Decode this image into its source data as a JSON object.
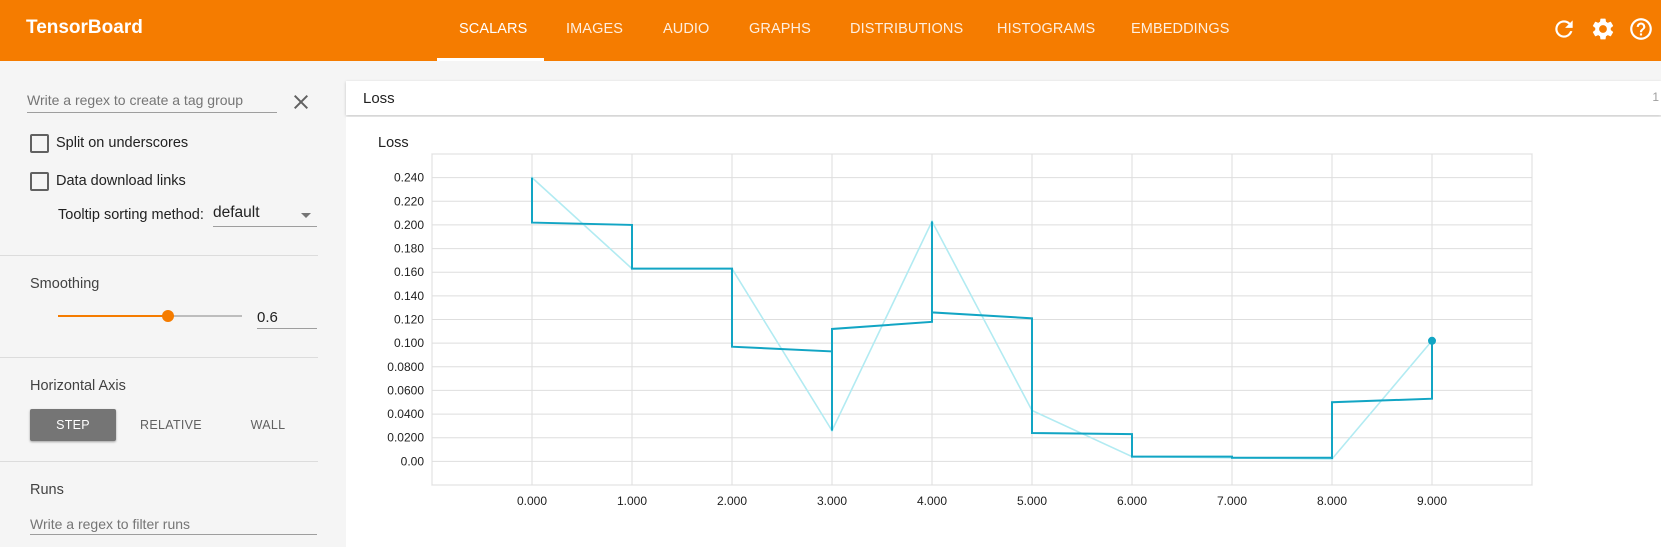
{
  "header": {
    "brand": "TensorBoard",
    "tabs": [
      {
        "label": "SCALARS",
        "active": true
      },
      {
        "label": "IMAGES",
        "active": false
      },
      {
        "label": "AUDIO",
        "active": false
      },
      {
        "label": "GRAPHS",
        "active": false
      },
      {
        "label": "DISTRIBUTIONS",
        "active": false
      },
      {
        "label": "HISTOGRAMS",
        "active": false
      },
      {
        "label": "EMBEDDINGS",
        "active": false
      }
    ],
    "icons": [
      "refresh-icon",
      "settings-icon",
      "help-icon"
    ],
    "accent_color": "#f57c00"
  },
  "sidebar": {
    "tag_regex_placeholder": "Write a regex to create a tag group",
    "split_underscores_label": "Split on underscores",
    "split_underscores_checked": false,
    "download_links_label": "Data download links",
    "download_links_checked": false,
    "tooltip_sorting_label": "Tooltip sorting method:",
    "tooltip_sorting_value": "default",
    "smoothing_title": "Smoothing",
    "smoothing_value": "0.6",
    "smoothing_fraction": 0.6,
    "horizontal_axis_title": "Horizontal Axis",
    "axis_options": [
      {
        "label": "STEP",
        "active": true
      },
      {
        "label": "RELATIVE",
        "active": false
      },
      {
        "label": "WALL",
        "active": false
      }
    ],
    "runs_title": "Runs",
    "runs_placeholder": "Write a regex to filter runs"
  },
  "main": {
    "group_title": "Loss",
    "group_count": "1",
    "card_title": "Loss"
  },
  "chart_data": {
    "type": "line",
    "title": "Loss",
    "xlabel": "",
    "ylabel": "",
    "xlim": [
      -1.0,
      10.0
    ],
    "ylim": [
      -0.02,
      0.26
    ],
    "x_ticks": [
      "0.000",
      "1.000",
      "2.000",
      "3.000",
      "4.000",
      "5.000",
      "6.000",
      "7.000",
      "8.000",
      "9.000"
    ],
    "y_ticks": [
      "0.00",
      "0.0200",
      "0.0400",
      "0.0600",
      "0.0800",
      "0.100",
      "0.120",
      "0.140",
      "0.160",
      "0.180",
      "0.200",
      "0.220",
      "0.240"
    ],
    "grid": true,
    "series": [
      {
        "role": "raw",
        "color": "#b2ebf2",
        "x": [
          0,
          1,
          2,
          3,
          4,
          5,
          6,
          7,
          8,
          9
        ],
        "y": [
          0.24,
          0.163,
          0.163,
          0.026,
          0.203,
          0.043,
          0.004,
          0.003,
          0.002,
          0.102
        ]
      },
      {
        "role": "smoothed",
        "color": "#12a5c4",
        "interpolation": "step",
        "x": [
          0,
          1,
          2,
          3,
          4,
          5,
          6,
          7,
          8,
          9
        ],
        "y": [
          0.24,
          0.163,
          0.163,
          0.026,
          0.203,
          0.043,
          0.004,
          0.003,
          0.002,
          0.102
        ],
        "start_values": [
          0.202,
          0.163,
          0.097,
          0.112,
          0.126,
          0.024,
          0.004,
          0.003,
          0.05,
          0.102
        ],
        "end_values": [
          0.2,
          0.163,
          0.093,
          0.118,
          0.121,
          0.023,
          0.004,
          0.003,
          0.053,
          0.102
        ]
      }
    ],
    "highlight_point": {
      "x": 9,
      "y": 0.102
    }
  }
}
